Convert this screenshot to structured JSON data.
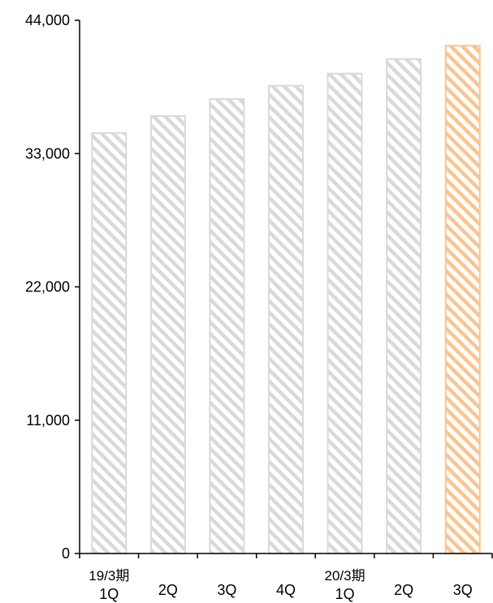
{
  "chart_data": {
    "type": "bar",
    "title": "",
    "xlabel": "",
    "ylabel": "",
    "ylim": [
      0,
      44000
    ],
    "yticks": [
      0,
      11000,
      22000,
      33000,
      44000
    ],
    "ytick_labels": [
      "0",
      "11,000",
      "22,000",
      "33,000",
      "44,000"
    ],
    "grid": false,
    "categories": [
      {
        "line1": "19/3期",
        "line2": "1Q"
      },
      {
        "line1": "",
        "line2": "2Q"
      },
      {
        "line1": "",
        "line2": "3Q"
      },
      {
        "line1": "",
        "line2": "4Q"
      },
      {
        "line1": "20/3期",
        "line2": "1Q"
      },
      {
        "line1": "",
        "line2": "2Q"
      },
      {
        "line1": "",
        "line2": "3Q"
      }
    ],
    "values": [
      34700,
      36100,
      37500,
      38600,
      39600,
      40800,
      41900
    ],
    "colors": {
      "default_bar": "#d9d9d9",
      "highlight_bar": "#fbc48e",
      "axis": "#000000"
    },
    "highlight_index": 6
  }
}
